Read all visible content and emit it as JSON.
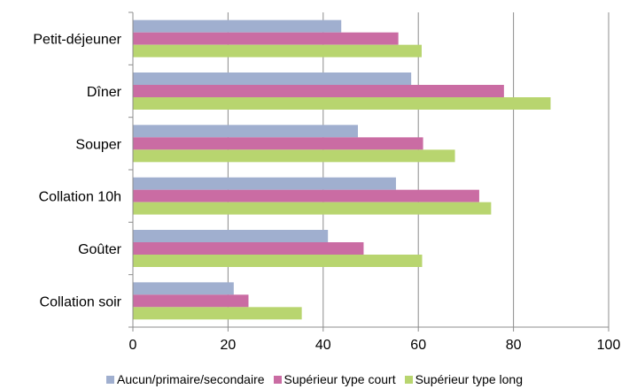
{
  "chart_data": {
    "type": "bar",
    "orientation": "horizontal",
    "categories": [
      "Petit-déjeuner",
      "Dîner",
      "Souper",
      "Collation 10h",
      "Goûter",
      "Collation soir"
    ],
    "series": [
      {
        "name": "Aucun/primaire/secondaire",
        "color": "#A0AFCF",
        "values": [
          43.8,
          58.5,
          47.3,
          55.3,
          41.0,
          21.2
        ]
      },
      {
        "name": "Supérieur type court",
        "color": "#CA6CA3",
        "values": [
          55.8,
          78.0,
          61.0,
          72.8,
          48.5,
          24.3
        ]
      },
      {
        "name": "Supérieur type long",
        "color": "#B8D56F",
        "values": [
          60.7,
          87.8,
          67.7,
          75.3,
          60.8,
          35.5
        ]
      }
    ],
    "xlim": [
      0,
      100
    ],
    "xticks": [
      0,
      20,
      40,
      60,
      80,
      100
    ],
    "grid": true,
    "legend": "bottom"
  }
}
